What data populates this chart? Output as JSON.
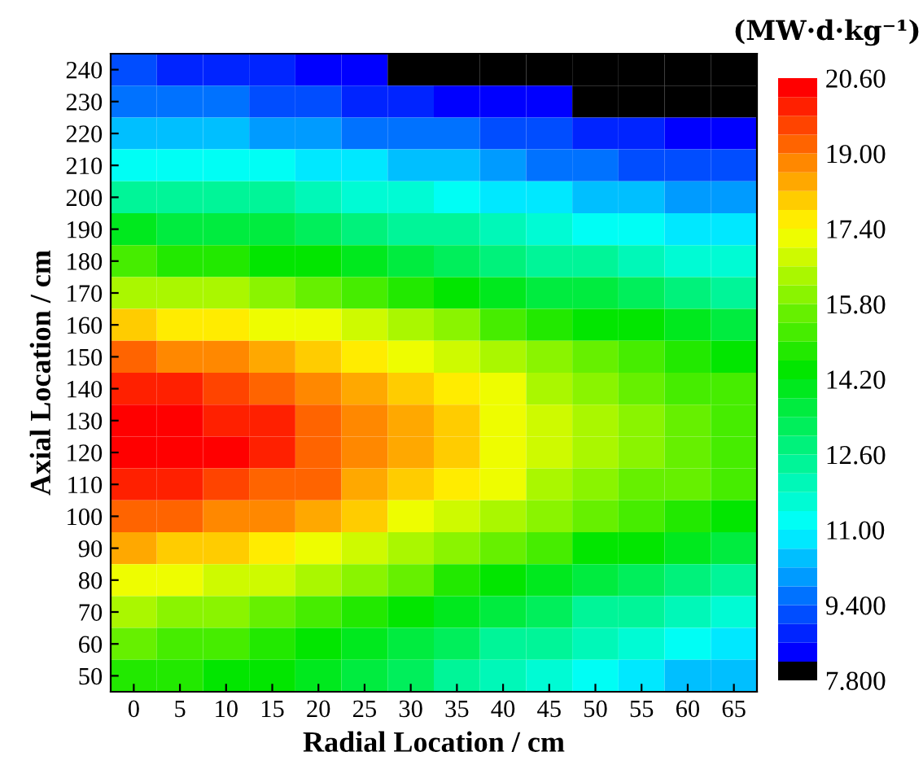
{
  "chart_data": {
    "type": "heatmap",
    "xlabel": "Radial Location / cm",
    "ylabel": "Axial Location / cm",
    "clabel": "(MW·d·kg⁻¹)",
    "categories": [
      "0",
      "5",
      "10",
      "15",
      "20",
      "25",
      "30",
      "35",
      "40",
      "45",
      "50",
      "55",
      "60",
      "65"
    ],
    "y_categories": [
      "240",
      "230",
      "220",
      "210",
      "200",
      "190",
      "180",
      "170",
      "160",
      "150",
      "140",
      "130",
      "120",
      "110",
      "100",
      "90",
      "80",
      "70",
      "60",
      "50"
    ],
    "cells": [
      [
        9.0,
        8.9,
        8.8,
        8.6,
        8.4,
        8.2,
        8.0,
        7.9,
        7.9,
        7.9,
        7.9,
        7.8,
        7.8,
        7.8
      ],
      [
        9.6,
        9.5,
        9.4,
        9.2,
        9.0,
        8.8,
        8.6,
        8.4,
        8.3,
        8.2,
        8.1,
        8.0,
        7.9,
        7.9
      ],
      [
        10.3,
        10.3,
        10.2,
        10.1,
        9.9,
        9.7,
        9.5,
        9.4,
        9.2,
        9.0,
        8.8,
        8.7,
        8.5,
        8.4
      ],
      [
        11.3,
        11.3,
        11.2,
        11.0,
        10.8,
        10.6,
        10.4,
        10.2,
        9.9,
        9.7,
        9.5,
        9.3,
        9.2,
        9.0
      ],
      [
        12.5,
        12.4,
        12.3,
        12.2,
        12.0,
        11.7,
        11.4,
        11.2,
        10.9,
        10.6,
        10.4,
        10.2,
        10.0,
        9.8
      ],
      [
        13.8,
        13.7,
        13.6,
        13.4,
        13.2,
        12.8,
        12.5,
        12.2,
        11.9,
        11.6,
        11.3,
        11.0,
        10.8,
        10.6
      ],
      [
        15.0,
        14.9,
        14.8,
        14.6,
        14.3,
        14.0,
        13.6,
        13.3,
        12.9,
        12.6,
        12.3,
        12.0,
        11.7,
        11.5
      ],
      [
        16.4,
        16.3,
        16.2,
        15.9,
        15.6,
        15.3,
        14.9,
        14.5,
        14.1,
        13.7,
        13.4,
        13.1,
        12.9,
        12.6
      ],
      [
        17.8,
        17.7,
        17.6,
        17.3,
        17.0,
        16.6,
        16.2,
        15.8,
        15.3,
        14.9,
        14.6,
        14.3,
        14.0,
        13.7
      ],
      [
        19.0,
        18.9,
        18.7,
        18.5,
        18.1,
        17.7,
        17.2,
        16.8,
        16.4,
        15.9,
        15.6,
        15.2,
        14.9,
        14.6
      ],
      [
        19.9,
        19.8,
        19.6,
        19.3,
        18.9,
        18.4,
        17.9,
        17.5,
        17.0,
        16.5,
        16.1,
        15.7,
        15.3,
        15.0
      ],
      [
        20.4,
        20.3,
        20.1,
        19.8,
        19.4,
        18.8,
        18.3,
        17.8,
        17.3,
        16.8,
        16.3,
        15.9,
        15.6,
        15.2
      ],
      [
        20.5,
        20.4,
        20.2,
        19.9,
        19.4,
        18.9,
        18.4,
        17.9,
        17.3,
        16.8,
        16.4,
        16.0,
        15.6,
        15.2
      ],
      [
        20.0,
        19.9,
        19.7,
        19.4,
        19.0,
        18.5,
        18.0,
        17.5,
        17.0,
        16.5,
        16.1,
        15.7,
        15.4,
        15.0
      ],
      [
        19.2,
        19.1,
        18.9,
        18.6,
        18.2,
        17.8,
        17.3,
        16.8,
        16.3,
        15.8,
        15.5,
        15.1,
        14.7,
        14.4
      ],
      [
        18.2,
        18.1,
        17.9,
        17.7,
        17.3,
        16.8,
        16.4,
        15.9,
        15.4,
        15.0,
        14.6,
        14.2,
        13.9,
        13.6
      ],
      [
        17.2,
        17.1,
        16.9,
        16.7,
        16.3,
        15.8,
        15.4,
        14.9,
        14.4,
        14.0,
        13.6,
        13.2,
        12.9,
        12.6
      ],
      [
        16.2,
        16.1,
        15.9,
        15.7,
        15.3,
        14.8,
        14.4,
        13.9,
        13.4,
        13.0,
        12.6,
        12.2,
        11.9,
        11.6
      ],
      [
        15.4,
        15.3,
        15.1,
        14.9,
        14.5,
        14.0,
        13.6,
        13.1,
        12.6,
        12.2,
        11.8,
        11.4,
        11.1,
        10.8
      ],
      [
        14.8,
        14.7,
        14.5,
        14.3,
        13.9,
        13.4,
        13.0,
        12.5,
        12.0,
        11.6,
        11.2,
        10.8,
        10.5,
        10.2
      ]
    ],
    "clim": [
      7.8,
      20.6
    ],
    "cticks": [
      {
        "value": 7.8,
        "label": "7.800"
      },
      {
        "value": 9.4,
        "label": "9.400"
      },
      {
        "value": 11.0,
        "label": "11.00"
      },
      {
        "value": 12.6,
        "label": "12.60"
      },
      {
        "value": 14.2,
        "label": "14.20"
      },
      {
        "value": 15.8,
        "label": "15.80"
      },
      {
        "value": 17.4,
        "label": "17.40"
      },
      {
        "value": 19.0,
        "label": "19.00"
      },
      {
        "value": 20.6,
        "label": "20.60"
      }
    ]
  }
}
